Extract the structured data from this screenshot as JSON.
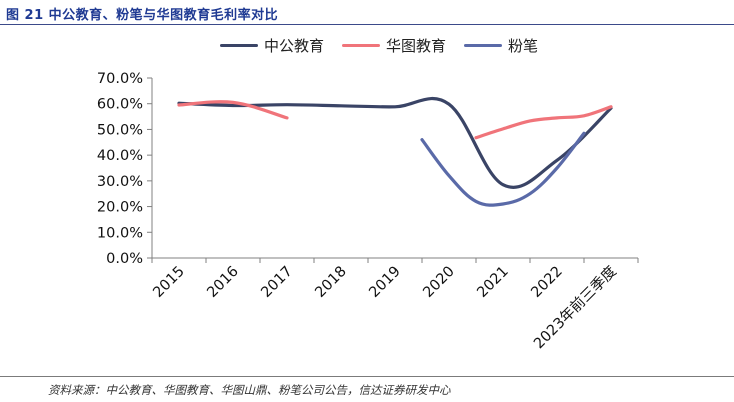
{
  "figure": {
    "title": "图 21   中公教育、粉笔与华图教育毛利率对比",
    "source": "资料来源：中公教育、华图教育、华图山鼎、粉笔公司公告，信达证券研发中心"
  },
  "chart_data": {
    "type": "line",
    "categories": [
      "2015",
      "2016",
      "2017",
      "2018",
      "2019",
      "2020",
      "2021",
      "2022",
      "2023年前三季度"
    ],
    "yticks": [
      "0.0%",
      "10.0%",
      "20.0%",
      "30.0%",
      "40.0%",
      "50.0%",
      "60.0%",
      "70.0%"
    ],
    "ylim": [
      0,
      70
    ],
    "grid": false,
    "legend_position": "top",
    "series": [
      {
        "name": "中公教育",
        "color": "#3a4466",
        "points": [
          [
            0,
            60.2
          ],
          [
            1,
            59.3
          ],
          [
            2,
            59.6
          ],
          [
            3,
            59.2
          ],
          [
            4,
            58.8
          ],
          [
            5,
            59.8
          ],
          [
            6,
            28.5
          ],
          [
            7,
            38.0
          ],
          [
            8,
            58.3
          ]
        ]
      },
      {
        "name": "华图教育",
        "color": "#f0747a",
        "points": [
          [
            0,
            59.5
          ],
          [
            1,
            60.5
          ],
          [
            2,
            54.5
          ],
          [
            5.5,
            46.8
          ],
          [
            6,
            50.2
          ],
          [
            6.5,
            53.3
          ],
          [
            7,
            54.5
          ],
          [
            7.5,
            55.3
          ],
          [
            8,
            58.8
          ]
        ]
      },
      {
        "name": "粉笔",
        "color": "#5a6aa8",
        "points": [
          [
            4.5,
            46.0
          ],
          [
            5,
            32.0
          ],
          [
            5.5,
            22.0
          ],
          [
            6,
            21.0
          ],
          [
            6.5,
            25.0
          ],
          [
            7,
            35.0
          ],
          [
            7.5,
            48.5
          ]
        ]
      }
    ]
  }
}
